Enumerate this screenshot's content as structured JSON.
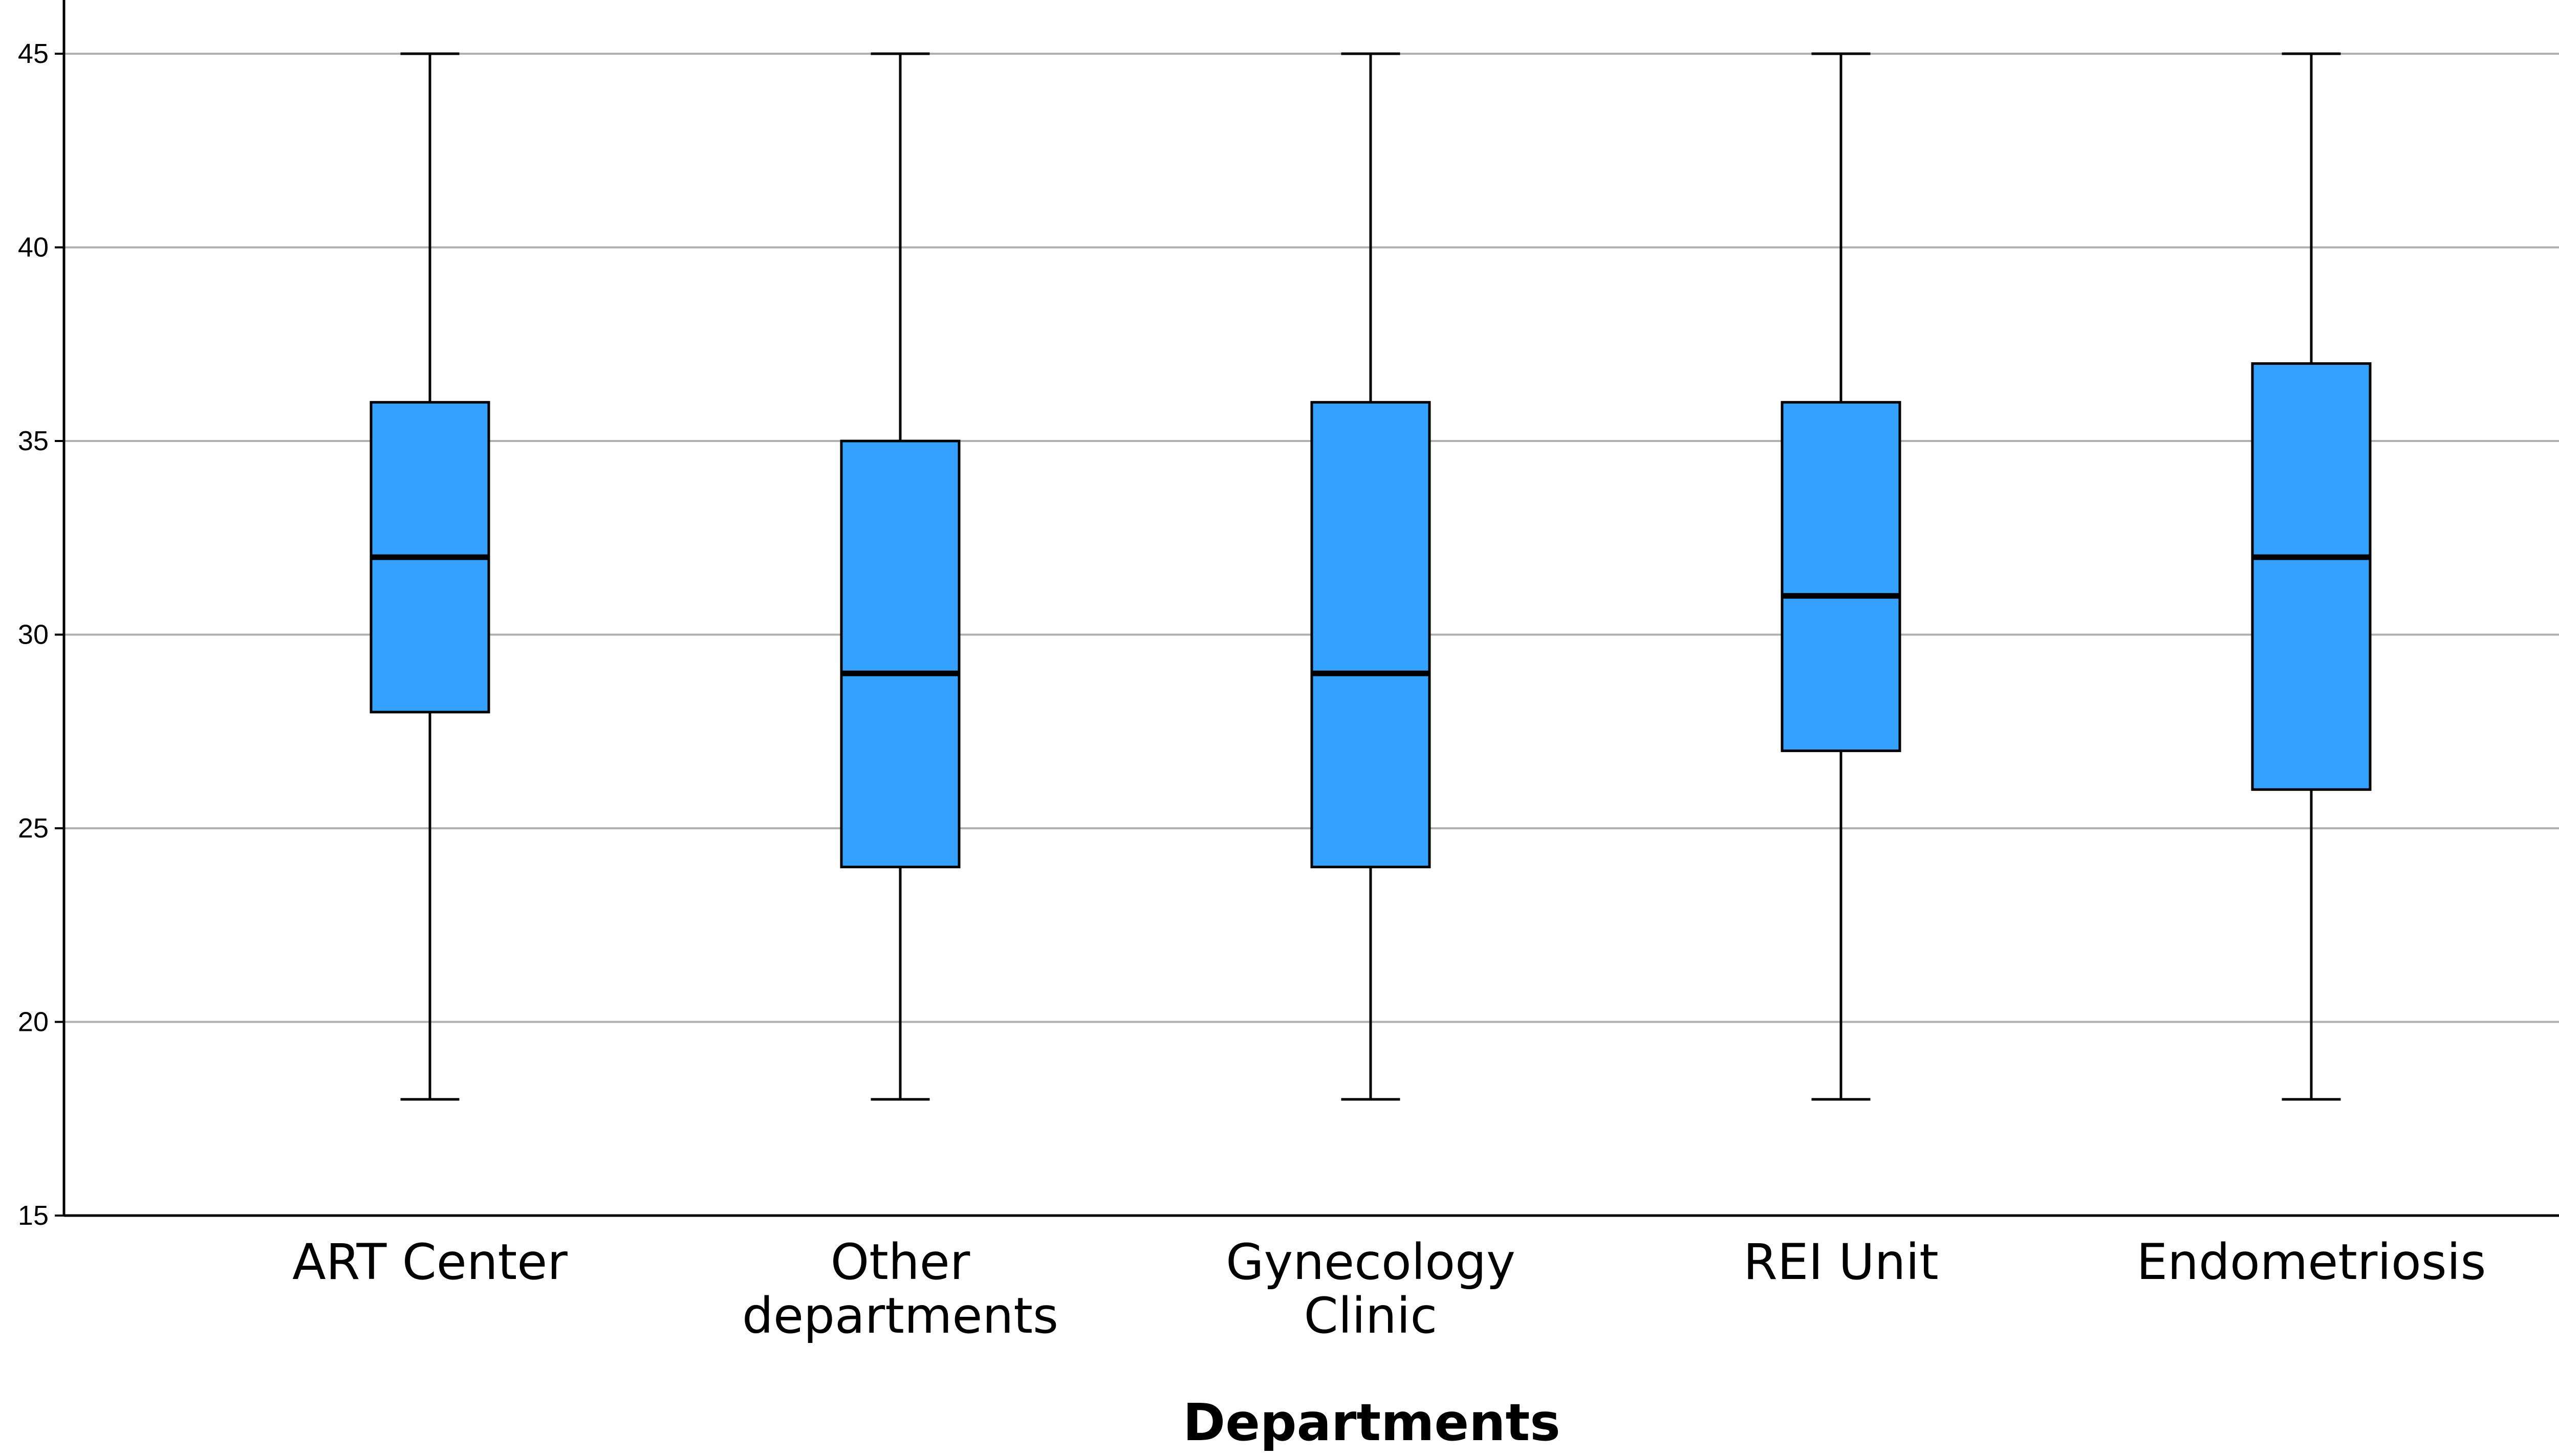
{
  "chart_data": {
    "type": "boxplot",
    "title": "",
    "xlabel": "Departments",
    "ylabel": "",
    "ylim": [
      15,
      45
    ],
    "y_ticks": [
      15,
      20,
      25,
      30,
      35,
      40,
      45
    ],
    "grid": "horizontal",
    "categories": [
      [
        "ART Center"
      ],
      [
        "Other",
        "departments"
      ],
      [
        "Gynecology",
        "Clinic"
      ],
      [
        "REI Unit"
      ],
      [
        "Endometriosis"
      ]
    ],
    "boxes": [
      {
        "min": 18,
        "q1": 28,
        "median": 32,
        "q3": 36,
        "max": 45
      },
      {
        "min": 18,
        "q1": 24,
        "median": 29,
        "q3": 35,
        "max": 45
      },
      {
        "min": 18,
        "q1": 24,
        "median": 29,
        "q3": 36,
        "max": 45
      },
      {
        "min": 18,
        "q1": 27,
        "median": 31,
        "q3": 36,
        "max": 45
      },
      {
        "min": 18,
        "q1": 26,
        "median": 32,
        "q3": 37,
        "max": 45
      }
    ],
    "colors": {
      "box_fill": "#33a1fd",
      "box_stroke": "#000000",
      "grid": "#b0b0b0",
      "axis": "#000000"
    }
  }
}
